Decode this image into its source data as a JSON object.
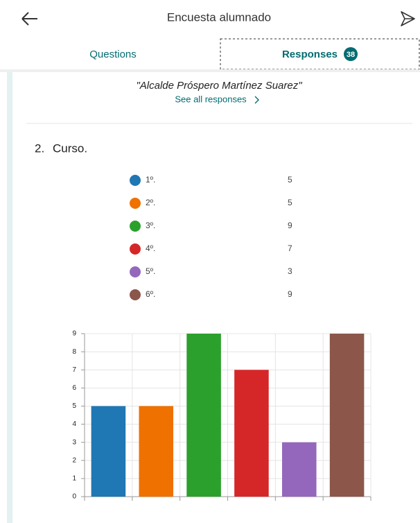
{
  "header": {
    "title": "Encuesta alumnado"
  },
  "tabs": [
    {
      "label": "Questions"
    },
    {
      "label": "Responses",
      "badge": 38
    }
  ],
  "previous_response": {
    "text": "\"Alcalde Próspero Martínez Suarez\"",
    "link": "See all responses"
  },
  "question": {
    "number": "2.",
    "title": "Curso."
  },
  "chart_data": {
    "type": "bar",
    "categories": [
      "1º.",
      "2º.",
      "3º.",
      "4º.",
      "5º.",
      "6º."
    ],
    "values": [
      5,
      5,
      9,
      7,
      3,
      9
    ],
    "colors": [
      "#1f77b4",
      "#ef7100",
      "#2ca02c",
      "#d62728",
      "#9467bd",
      "#8c564b"
    ],
    "ylim": [
      0,
      9
    ],
    "yticks": [
      0,
      1,
      2,
      3,
      4,
      5,
      6,
      7,
      8,
      9
    ],
    "grid": true
  }
}
